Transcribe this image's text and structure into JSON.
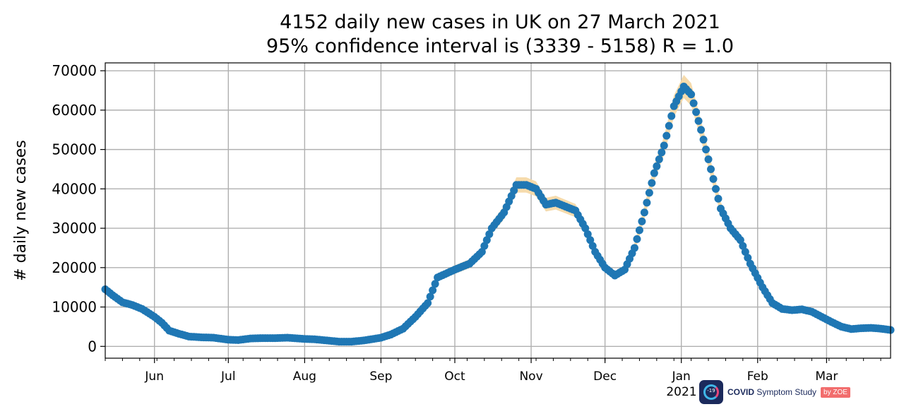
{
  "chart_data": {
    "type": "scatter",
    "title": "4152 daily new cases in UK on 27 March 2021",
    "subtitle": "95% confidence interval is (3339 - 5158) R = 1.0",
    "xlabel": "",
    "ylabel": "# daily new cases",
    "ylim": [
      -3000,
      72000
    ],
    "xlim": [
      "2020-05-12",
      "2021-03-27"
    ],
    "yticks": [
      0,
      10000,
      20000,
      30000,
      40000,
      50000,
      60000,
      70000
    ],
    "xticks": [
      {
        "date": "2020-06-01",
        "label": "Jun"
      },
      {
        "date": "2020-07-01",
        "label": "Jul"
      },
      {
        "date": "2020-08-01",
        "label": "Aug"
      },
      {
        "date": "2020-09-01",
        "label": "Sep"
      },
      {
        "date": "2020-10-01",
        "label": "Oct"
      },
      {
        "date": "2020-11-01",
        "label": "Nov"
      },
      {
        "date": "2020-12-01",
        "label": "Dec"
      },
      {
        "date": "2021-01-01",
        "label": "Jan"
      },
      {
        "date": "2021-02-01",
        "label": "Feb"
      },
      {
        "date": "2021-03-01",
        "label": "Mar"
      }
    ],
    "year_label": "2021",
    "grid": true,
    "colors": {
      "points": "#1f77b4",
      "confidence_band": "#f5d7a3",
      "grid": "#b0b0b0"
    },
    "series": [
      {
        "values": [
          [
            "2020-05-12",
            14500
          ],
          [
            "2020-05-15",
            13000
          ],
          [
            "2020-05-19",
            11200
          ],
          [
            "2020-05-23",
            10500
          ],
          [
            "2020-05-27",
            9500
          ],
          [
            "2020-06-01",
            7500
          ],
          [
            "2020-06-04",
            6000
          ],
          [
            "2020-06-07",
            4000
          ],
          [
            "2020-06-11",
            3200
          ],
          [
            "2020-06-15",
            2500
          ],
          [
            "2020-06-20",
            2300
          ],
          [
            "2020-06-25",
            2200
          ],
          [
            "2020-07-01",
            1700
          ],
          [
            "2020-07-05",
            1600
          ],
          [
            "2020-07-10",
            2000
          ],
          [
            "2020-07-15",
            2100
          ],
          [
            "2020-07-20",
            2100
          ],
          [
            "2020-07-25",
            2200
          ],
          [
            "2020-08-01",
            1900
          ],
          [
            "2020-08-05",
            1800
          ],
          [
            "2020-08-10",
            1500
          ],
          [
            "2020-08-15",
            1200
          ],
          [
            "2020-08-20",
            1200
          ],
          [
            "2020-08-25",
            1500
          ],
          [
            "2020-09-01",
            2200
          ],
          [
            "2020-09-05",
            3000
          ],
          [
            "2020-09-10",
            4500
          ],
          [
            "2020-09-15",
            7500
          ],
          [
            "2020-09-20",
            11000
          ],
          [
            "2020-09-24",
            17500
          ],
          [
            "2020-10-01",
            19500
          ],
          [
            "2020-10-07",
            21000
          ],
          [
            "2020-10-12",
            24000
          ],
          [
            "2020-10-16",
            30000
          ],
          [
            "2020-10-21",
            34000
          ],
          [
            "2020-10-26",
            41000
          ],
          [
            "2020-10-30",
            41000
          ],
          [
            "2020-11-03",
            40000
          ],
          [
            "2020-11-07",
            36000
          ],
          [
            "2020-11-11",
            36500
          ],
          [
            "2020-11-15",
            35500
          ],
          [
            "2020-11-19",
            34500
          ],
          [
            "2020-11-23",
            30000
          ],
          [
            "2020-11-27",
            24000
          ],
          [
            "2020-12-01",
            20000
          ],
          [
            "2020-12-05",
            18000
          ],
          [
            "2020-12-09",
            19500
          ],
          [
            "2020-12-13",
            25000
          ],
          [
            "2020-12-17",
            34000
          ],
          [
            "2020-12-21",
            44000
          ],
          [
            "2020-12-25",
            51000
          ],
          [
            "2020-12-29",
            61000
          ],
          [
            "2021-01-02",
            66000
          ],
          [
            "2021-01-05",
            64000
          ],
          [
            "2021-01-09",
            55000
          ],
          [
            "2021-01-13",
            45000
          ],
          [
            "2021-01-17",
            35000
          ],
          [
            "2021-01-21",
            30000
          ],
          [
            "2021-01-25",
            27000
          ],
          [
            "2021-01-29",
            21000
          ],
          [
            "2021-02-03",
            15000
          ],
          [
            "2021-02-07",
            11000
          ],
          [
            "2021-02-11",
            9500
          ],
          [
            "2021-02-15",
            9200
          ],
          [
            "2021-02-19",
            9400
          ],
          [
            "2021-02-23",
            8800
          ],
          [
            "2021-02-27",
            7500
          ],
          [
            "2021-03-03",
            6200
          ],
          [
            "2021-03-07",
            5000
          ],
          [
            "2021-03-11",
            4400
          ],
          [
            "2021-03-15",
            4600
          ],
          [
            "2021-03-19",
            4700
          ],
          [
            "2021-03-23",
            4500
          ],
          [
            "2021-03-27",
            4152
          ]
        ]
      }
    ]
  },
  "branding": {
    "badge_text": "-19",
    "app_name_bold": "COVID",
    "app_name_rest": " Symptom Study",
    "by_label": "by ZOE"
  }
}
